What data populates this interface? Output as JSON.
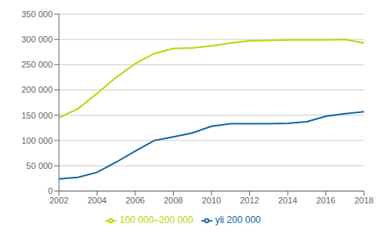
{
  "chart_data": {
    "type": "line",
    "x": [
      2002,
      2003,
      2004,
      2005,
      2006,
      2007,
      2008,
      2009,
      2010,
      2011,
      2012,
      2013,
      2014,
      2015,
      2016,
      2017,
      2018
    ],
    "series": [
      {
        "name": "100 000–200 000",
        "color": "#bdd400",
        "values": [
          145000,
          163000,
          193000,
          225000,
          252000,
          272000,
          282000,
          283000,
          287000,
          293000,
          297000,
          298000,
          299000,
          299000,
          299000,
          300000,
          293000
        ]
      },
      {
        "name": "yli 200 000",
        "color": "#1464a0",
        "values": [
          24000,
          27000,
          37000,
          57000,
          79000,
          100000,
          107000,
          115000,
          128000,
          133000,
          133000,
          133000,
          134000,
          137000,
          148000,
          153000,
          157000
        ]
      }
    ],
    "xlim": [
      2002,
      2018
    ],
    "ylim": [
      0,
      350000
    ],
    "xticks": [
      2002,
      2004,
      2006,
      2008,
      2010,
      2012,
      2014,
      2016,
      2018
    ],
    "yticks": [
      0,
      {
        "value": 50000,
        "label": "50 000"
      },
      {
        "value": 100000,
        "label": "100 000"
      },
      {
        "value": 150000,
        "label": "150 000"
      },
      {
        "value": 200000,
        "label": "200 000"
      },
      {
        "value": 250000,
        "label": "250 000"
      },
      {
        "value": 300000,
        "label": "300 000"
      },
      {
        "value": 350000,
        "label": "350 000"
      }
    ],
    "grid": true,
    "legend": "bottom"
  }
}
